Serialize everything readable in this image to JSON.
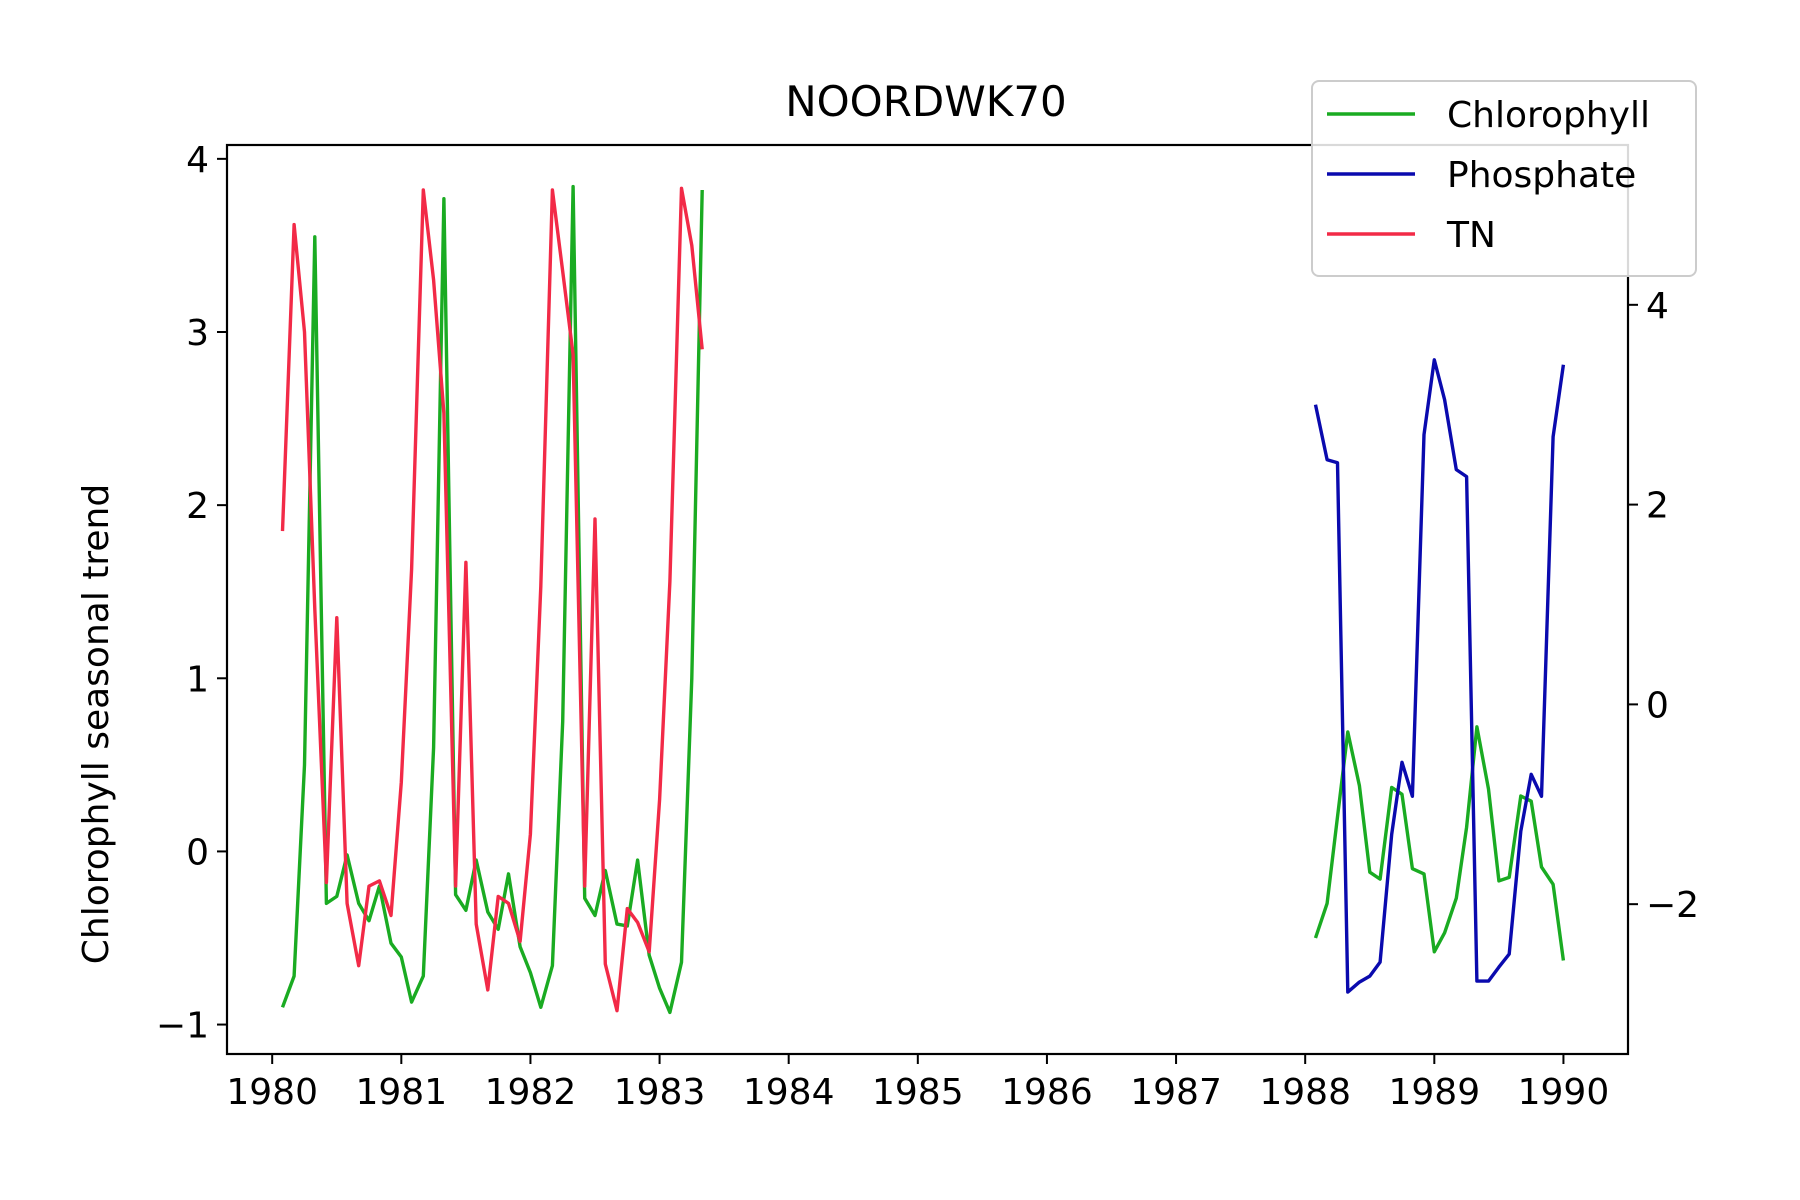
{
  "chart_data": {
    "type": "line",
    "title": "NOORDWK70",
    "xlabel": "",
    "ylabel": "Chlorophyll seasonal trend",
    "ylabel_right": "",
    "xlim": [
      1979.65,
      1990.5
    ],
    "ylim": [
      -1.17,
      4.08
    ],
    "ylim_right": [
      -3.5,
      5.6
    ],
    "x_ticks": [
      1980,
      1981,
      1982,
      1983,
      1984,
      1985,
      1986,
      1987,
      1988,
      1989,
      1990
    ],
    "x_tick_labels": [
      "1980",
      "1981",
      "1982",
      "1983",
      "1984",
      "1985",
      "1986",
      "1987",
      "1988",
      "1989",
      "1990"
    ],
    "y_ticks": [
      -1,
      0,
      1,
      2,
      3,
      4
    ],
    "y_tick_labels": [
      "−1",
      "0",
      "1",
      "2",
      "3",
      "4"
    ],
    "y_right_ticks": [
      -2,
      0,
      2,
      4
    ],
    "y_right_tick_labels": [
      "−2",
      "0",
      "2",
      "4"
    ],
    "grid": false,
    "legend_position": "top-right",
    "series": [
      {
        "name": "Chlorophyll",
        "color": "#1aab22",
        "axis": "left",
        "segments": [
          {
            "x": [
              1980.08,
              1980.17,
              1980.25,
              1980.33,
              1980.42,
              1980.5,
              1980.58,
              1980.67,
              1980.75,
              1980.83,
              1980.92,
              1981.0,
              1981.08,
              1981.17,
              1981.25,
              1981.33,
              1981.42,
              1981.5,
              1981.58,
              1981.67,
              1981.75,
              1981.83,
              1981.92,
              1982.0,
              1982.08,
              1982.17,
              1982.25,
              1982.33,
              1982.42,
              1982.5,
              1982.58,
              1982.67,
              1982.75,
              1982.83,
              1982.92,
              1983.0,
              1983.08,
              1983.17,
              1983.25,
              1983.33
            ],
            "y": [
              -0.9,
              -0.72,
              0.5,
              3.55,
              -0.3,
              -0.26,
              -0.02,
              -0.3,
              -0.4,
              -0.2,
              -0.53,
              -0.61,
              -0.87,
              -0.72,
              0.6,
              3.77,
              -0.25,
              -0.34,
              -0.05,
              -0.35,
              -0.45,
              -0.13,
              -0.55,
              -0.7,
              -0.9,
              -0.66,
              0.75,
              3.84,
              -0.27,
              -0.37,
              -0.11,
              -0.42,
              -0.43,
              -0.05,
              -0.6,
              -0.79,
              -0.93,
              -0.64,
              1.0,
              3.82
            ]
          },
          {
            "x": [
              1988.08,
              1988.17,
              1988.25,
              1988.33,
              1988.42,
              1988.5,
              1988.58,
              1988.67,
              1988.75,
              1988.83,
              1988.92,
              1989.0,
              1989.08,
              1989.17,
              1989.25,
              1989.33,
              1989.42,
              1989.5,
              1989.58,
              1989.67,
              1989.75,
              1989.83,
              1989.92,
              1990.0
            ],
            "y": [
              -0.5,
              -0.3,
              0.2,
              0.69,
              0.38,
              -0.12,
              -0.16,
              0.37,
              0.33,
              -0.1,
              -0.13,
              -0.58,
              -0.47,
              -0.27,
              0.14,
              0.72,
              0.36,
              -0.17,
              -0.15,
              0.32,
              0.29,
              -0.09,
              -0.19,
              -0.63
            ]
          }
        ]
      },
      {
        "name": "Phosphate",
        "color": "#0a0aae",
        "axis": "right",
        "segments": [
          {
            "x": [
              1988.08,
              1988.17,
              1988.25,
              1988.33,
              1988.42,
              1988.5,
              1988.58,
              1988.67,
              1988.75,
              1988.83,
              1988.92,
              1989.0,
              1989.08,
              1989.17,
              1989.25,
              1989.33,
              1989.42,
              1989.5,
              1989.58,
              1989.67,
              1989.75,
              1989.83,
              1989.92,
              1990.0
            ],
            "y": [
              3.0,
              2.45,
              2.42,
              -2.88,
              -2.78,
              -2.72,
              -2.58,
              -1.3,
              -0.58,
              -0.92,
              2.7,
              3.45,
              3.05,
              2.35,
              2.28,
              -2.77,
              -2.77,
              -2.63,
              -2.5,
              -1.27,
              -0.7,
              -0.92,
              2.68,
              3.4
            ]
          }
        ]
      },
      {
        "name": "TN",
        "color": "#f22a47",
        "axis": "left",
        "segments": [
          {
            "x": [
              1980.08,
              1980.17,
              1980.25,
              1980.33,
              1980.42,
              1980.5,
              1980.58,
              1980.67,
              1980.75,
              1980.83,
              1980.92,
              1981.0,
              1981.08,
              1981.17,
              1981.25,
              1981.33,
              1981.42,
              1981.5,
              1981.58,
              1981.67,
              1981.75,
              1981.83,
              1981.92,
              1982.0,
              1982.08,
              1982.17,
              1982.25,
              1982.33,
              1982.42,
              1982.5,
              1982.58,
              1982.67,
              1982.75,
              1982.83,
              1982.92,
              1983.0,
              1983.08,
              1983.17,
              1983.25,
              1983.33
            ],
            "y": [
              1.85,
              3.62,
              3.0,
              1.4,
              -0.18,
              1.35,
              -0.3,
              -0.66,
              -0.2,
              -0.17,
              -0.37,
              0.4,
              1.63,
              3.82,
              3.3,
              2.53,
              -0.2,
              1.67,
              -0.42,
              -0.8,
              -0.26,
              -0.3,
              -0.52,
              0.1,
              1.53,
              3.82,
              3.35,
              2.87,
              -0.2,
              1.92,
              -0.65,
              -0.92,
              -0.33,
              -0.41,
              -0.58,
              0.3,
              1.56,
              3.83,
              3.5,
              2.9
            ]
          }
        ]
      }
    ]
  }
}
